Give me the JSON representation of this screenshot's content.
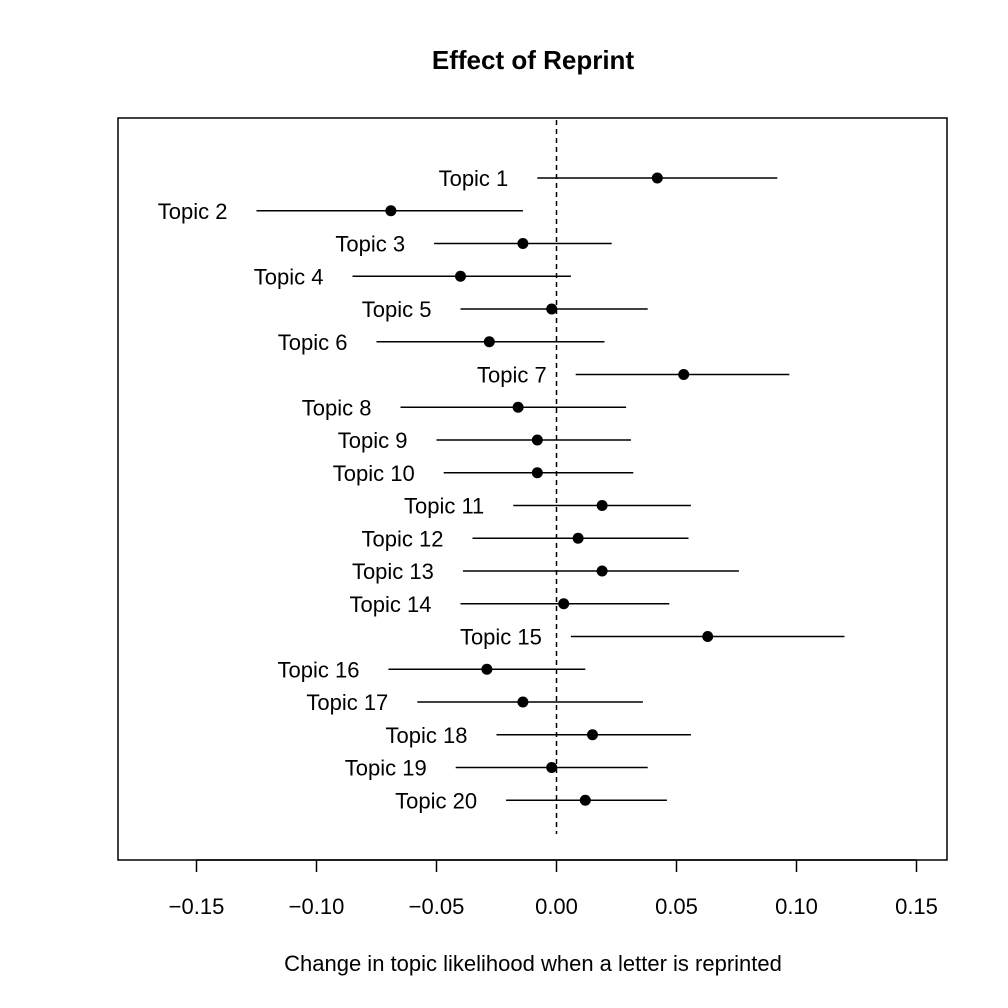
{
  "chart_data": {
    "type": "dot-and-whisker",
    "title": "Effect of Reprint",
    "xlabel": "Change in topic likelihood when a letter is reprinted",
    "ylabel": "",
    "xlim": [
      -0.18,
      0.165
    ],
    "xticks": [
      -0.15,
      -0.1,
      -0.05,
      0.0,
      0.05,
      0.1,
      0.15
    ],
    "xtick_labels": [
      "−0.15",
      "−0.10",
      "−0.05",
      "0.00",
      "0.05",
      "0.10",
      "0.15"
    ],
    "reference_line": 0,
    "series": [
      {
        "label": "Topic 1",
        "estimate": 0.042,
        "lower": -0.008,
        "upper": 0.092
      },
      {
        "label": "Topic 2",
        "estimate": -0.069,
        "lower": -0.125,
        "upper": -0.014
      },
      {
        "label": "Topic 3",
        "estimate": -0.014,
        "lower": -0.051,
        "upper": 0.023
      },
      {
        "label": "Topic 4",
        "estimate": -0.04,
        "lower": -0.085,
        "upper": 0.006
      },
      {
        "label": "Topic 5",
        "estimate": -0.002,
        "lower": -0.04,
        "upper": 0.038
      },
      {
        "label": "Topic 6",
        "estimate": -0.028,
        "lower": -0.075,
        "upper": 0.02
      },
      {
        "label": "Topic 7",
        "estimate": 0.053,
        "lower": 0.008,
        "upper": 0.097
      },
      {
        "label": "Topic 8",
        "estimate": -0.016,
        "lower": -0.065,
        "upper": 0.029
      },
      {
        "label": "Topic 9",
        "estimate": -0.008,
        "lower": -0.05,
        "upper": 0.031
      },
      {
        "label": "Topic 10",
        "estimate": -0.008,
        "lower": -0.047,
        "upper": 0.032
      },
      {
        "label": "Topic 11",
        "estimate": 0.019,
        "lower": -0.018,
        "upper": 0.056
      },
      {
        "label": "Topic 12",
        "estimate": 0.009,
        "lower": -0.035,
        "upper": 0.055
      },
      {
        "label": "Topic 13",
        "estimate": 0.019,
        "lower": -0.039,
        "upper": 0.076
      },
      {
        "label": "Topic 14",
        "estimate": 0.003,
        "lower": -0.04,
        "upper": 0.047
      },
      {
        "label": "Topic 15",
        "estimate": 0.063,
        "lower": 0.006,
        "upper": 0.12
      },
      {
        "label": "Topic 16",
        "estimate": -0.029,
        "lower": -0.07,
        "upper": 0.012
      },
      {
        "label": "Topic 17",
        "estimate": -0.014,
        "lower": -0.058,
        "upper": 0.036
      },
      {
        "label": "Topic 18",
        "estimate": 0.015,
        "lower": -0.025,
        "upper": 0.056
      },
      {
        "label": "Topic 19",
        "estimate": -0.002,
        "lower": -0.042,
        "upper": 0.038
      },
      {
        "label": "Topic 20",
        "estimate": 0.012,
        "lower": -0.021,
        "upper": 0.046
      }
    ]
  }
}
